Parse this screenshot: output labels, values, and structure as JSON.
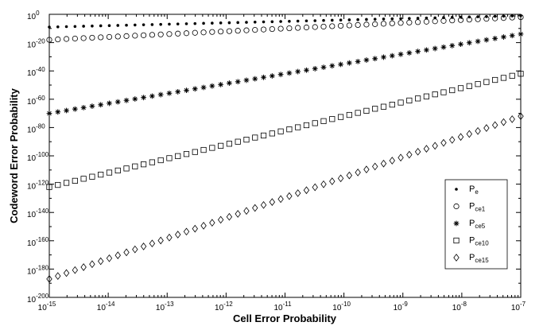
{
  "chart_data": {
    "type": "scatter",
    "title": "",
    "xlabel": "Cell Error Probability",
    "ylabel": "Codeword Error Probability",
    "x_scale": "log",
    "y_scale": "log",
    "xlim": [
      1e-15,
      1e-07
    ],
    "ylim": [
      1e-200,
      1
    ],
    "grid": false,
    "legend_position": "bottom-right",
    "x_ticks": [
      {
        "base": "10",
        "exp": "-15"
      },
      {
        "base": "10",
        "exp": "-14"
      },
      {
        "base": "10",
        "exp": "-13"
      },
      {
        "base": "10",
        "exp": "-12"
      },
      {
        "base": "10",
        "exp": "-11"
      },
      {
        "base": "10",
        "exp": "-10"
      },
      {
        "base": "10",
        "exp": "-9"
      },
      {
        "base": "10",
        "exp": "-8"
      },
      {
        "base": "10",
        "exp": "-7"
      }
    ],
    "y_ticks": [
      {
        "base": "10",
        "exp": "0"
      },
      {
        "base": "10",
        "exp": "-20"
      },
      {
        "base": "10",
        "exp": "-40"
      },
      {
        "base": "10",
        "exp": "-60"
      },
      {
        "base": "10",
        "exp": "-80"
      },
      {
        "base": "10",
        "exp": "-100"
      },
      {
        "base": "10",
        "exp": "-120"
      },
      {
        "base": "10",
        "exp": "-140"
      },
      {
        "base": "10",
        "exp": "-160"
      },
      {
        "base": "10",
        "exp": "-180"
      },
      {
        "base": "10",
        "exp": "-200"
      }
    ],
    "points_per_series": 56,
    "series": [
      {
        "label": "P",
        "sub": "e",
        "marker": "dot",
        "log10_y_start": -9,
        "log10_y_end": -1
      },
      {
        "label": "P",
        "sub": "ce1",
        "marker": "circle",
        "log10_y_start": -18,
        "log10_y_end": -2
      },
      {
        "label": "P",
        "sub": "ce5",
        "marker": "star",
        "log10_y_start": -70,
        "log10_y_end": -14
      },
      {
        "label": "P",
        "sub": "ce10",
        "marker": "square",
        "log10_y_start": -122,
        "log10_y_end": -42
      },
      {
        "label": "P",
        "sub": "ce15",
        "marker": "diamond",
        "log10_y_start": -187,
        "log10_y_end": -72
      }
    ]
  }
}
